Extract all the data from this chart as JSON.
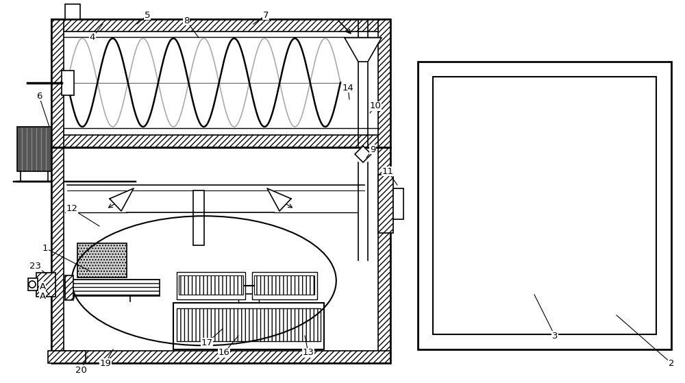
{
  "bg_color": "#ffffff",
  "line_color": "#000000",
  "figsize": [
    10.0,
    5.59
  ],
  "dpi": 100
}
